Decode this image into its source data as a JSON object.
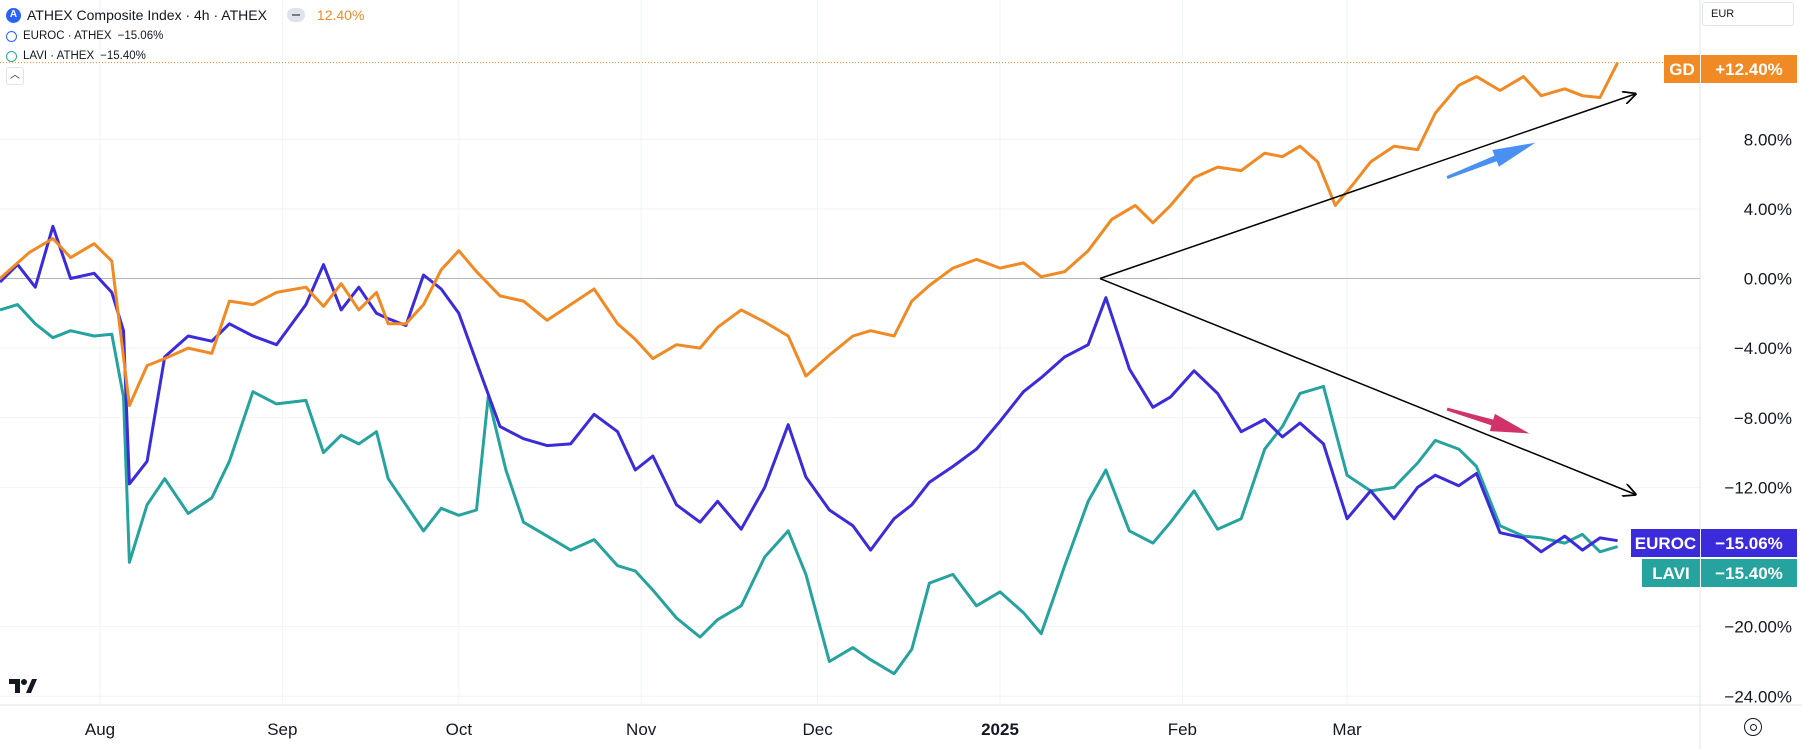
{
  "legend": {
    "main_symbol": "ATHEX Composite Index · 4h · ATHEX",
    "main_change": "12.40%",
    "rows": [
      {
        "text": "EUROC · ATHEX",
        "change": "−15.06%"
      },
      {
        "text": "LAVI · ATHEX",
        "change": "−15.40%"
      }
    ]
  },
  "currency": "EUR",
  "colors": {
    "GD": "#f08a24",
    "EUROC": "#3b2bdb",
    "LAVI": "#26a39f",
    "blue_arrow": "#4a90f0",
    "red_arrow": "#d0336a",
    "grid": "#f0f3fa"
  },
  "icons": {
    "logo": "tradingview-logo-icon",
    "settings": "gear-icon",
    "visibility": "eye-icon"
  },
  "chart_data": {
    "type": "line",
    "x_tick_labels": [
      "Aug",
      "Sep",
      "Oct",
      "Nov",
      "Dec",
      "2025",
      "Feb",
      "Mar"
    ],
    "y_tick_labels": [
      "8.00%",
      "4.00%",
      "0.00%",
      "−4.00%",
      "−8.00%",
      "−12.00%",
      "−20.00%",
      "−24.00%"
    ],
    "ylim": [
      -24.5,
      16
    ],
    "series": [
      {
        "name": "GD",
        "last_label": "+12.40%",
        "points": [
          [
            "2024-07-15",
            0
          ],
          [
            "2024-07-20",
            1.5
          ],
          [
            "2024-07-24",
            2.3
          ],
          [
            "2024-07-27",
            1.2
          ],
          [
            "2024-07-31",
            2.0
          ],
          [
            "2024-08-03",
            1.0
          ],
          [
            "2024-08-05",
            -4.5
          ],
          [
            "2024-08-06",
            -7.3
          ],
          [
            "2024-08-09",
            -5.0
          ],
          [
            "2024-08-12",
            -4.6
          ],
          [
            "2024-08-16",
            -4.0
          ],
          [
            "2024-08-20",
            -4.3
          ],
          [
            "2024-08-23",
            -1.3
          ],
          [
            "2024-08-27",
            -1.5
          ],
          [
            "2024-08-31",
            -0.8
          ],
          [
            "2024-09-05",
            -0.5
          ],
          [
            "2024-09-08",
            -1.6
          ],
          [
            "2024-09-11",
            -0.3
          ],
          [
            "2024-09-14",
            -1.8
          ],
          [
            "2024-09-17",
            -0.8
          ],
          [
            "2024-09-19",
            -2.6
          ],
          [
            "2024-09-22",
            -2.6
          ],
          [
            "2024-09-25",
            -1.5
          ],
          [
            "2024-09-28",
            0.5
          ],
          [
            "2024-10-01",
            1.6
          ],
          [
            "2024-10-04",
            0.4
          ],
          [
            "2024-10-08",
            -1.0
          ],
          [
            "2024-10-12",
            -1.3
          ],
          [
            "2024-10-16",
            -2.4
          ],
          [
            "2024-10-20",
            -1.5
          ],
          [
            "2024-10-24",
            -0.6
          ],
          [
            "2024-10-28",
            -2.6
          ],
          [
            "2024-10-31",
            -3.5
          ],
          [
            "2024-11-03",
            -4.6
          ],
          [
            "2024-11-07",
            -3.8
          ],
          [
            "2024-11-11",
            -4.0
          ],
          [
            "2024-11-14",
            -2.8
          ],
          [
            "2024-11-18",
            -1.8
          ],
          [
            "2024-11-22",
            -2.5
          ],
          [
            "2024-11-26",
            -3.3
          ],
          [
            "2024-11-29",
            -5.6
          ],
          [
            "2024-12-03",
            -4.4
          ],
          [
            "2024-12-07",
            -3.3
          ],
          [
            "2024-12-10",
            -3.0
          ],
          [
            "2024-12-14",
            -3.3
          ],
          [
            "2024-12-17",
            -1.3
          ],
          [
            "2024-12-20",
            -0.4
          ],
          [
            "2024-12-24",
            0.6
          ],
          [
            "2024-12-28",
            1.1
          ],
          [
            "2025-01-01",
            0.6
          ],
          [
            "2025-01-05",
            0.9
          ],
          [
            "2025-01-08",
            0.1
          ],
          [
            "2025-01-12",
            0.4
          ],
          [
            "2025-01-16",
            1.6
          ],
          [
            "2025-01-20",
            3.4
          ],
          [
            "2025-01-24",
            4.2
          ],
          [
            "2025-01-27",
            3.2
          ],
          [
            "2025-01-30",
            4.2
          ],
          [
            "2025-02-03",
            5.8
          ],
          [
            "2025-02-07",
            6.4
          ],
          [
            "2025-02-11",
            6.2
          ],
          [
            "2025-02-15",
            7.2
          ],
          [
            "2025-02-18",
            7.0
          ],
          [
            "2025-02-21",
            7.6
          ],
          [
            "2025-02-24",
            6.7
          ],
          [
            "2025-02-27",
            4.2
          ],
          [
            "2025-03-02",
            5.4
          ],
          [
            "2025-03-05",
            6.7
          ],
          [
            "2025-03-09",
            7.6
          ],
          [
            "2025-03-13",
            7.4
          ],
          [
            "2025-03-16",
            9.5
          ],
          [
            "2025-03-20",
            11.1
          ],
          [
            "2025-03-23",
            11.6
          ],
          [
            "2025-03-27",
            10.8
          ],
          [
            "2025-03-31",
            11.6
          ],
          [
            "2025-04-03",
            10.5
          ],
          [
            "2025-04-07",
            10.9
          ],
          [
            "2025-04-10",
            10.5
          ],
          [
            "2025-04-13",
            10.4
          ],
          [
            "2025-04-16",
            12.4
          ]
        ]
      },
      {
        "name": "EUROC",
        "last_label": "−15.06%",
        "points": [
          [
            "2024-07-15",
            -0.2
          ],
          [
            "2024-07-18",
            0.8
          ],
          [
            "2024-07-21",
            -0.5
          ],
          [
            "2024-07-24",
            3.0
          ],
          [
            "2024-07-27",
            0.0
          ],
          [
            "2024-07-31",
            0.3
          ],
          [
            "2024-08-03",
            -0.8
          ],
          [
            "2024-08-05",
            -3.0
          ],
          [
            "2024-08-06",
            -11.8
          ],
          [
            "2024-08-09",
            -10.5
          ],
          [
            "2024-08-12",
            -4.5
          ],
          [
            "2024-08-16",
            -3.3
          ],
          [
            "2024-08-20",
            -3.6
          ],
          [
            "2024-08-23",
            -2.6
          ],
          [
            "2024-08-27",
            -3.3
          ],
          [
            "2024-08-31",
            -3.8
          ],
          [
            "2024-09-05",
            -1.5
          ],
          [
            "2024-09-08",
            0.8
          ],
          [
            "2024-09-11",
            -1.8
          ],
          [
            "2024-09-14",
            -0.5
          ],
          [
            "2024-09-17",
            -2.0
          ],
          [
            "2024-09-19",
            -2.3
          ],
          [
            "2024-09-22",
            -2.7
          ],
          [
            "2024-09-25",
            0.2
          ],
          [
            "2024-09-28",
            -0.6
          ],
          [
            "2024-10-01",
            -2.0
          ],
          [
            "2024-10-04",
            -4.8
          ],
          [
            "2024-10-08",
            -8.5
          ],
          [
            "2024-10-12",
            -9.2
          ],
          [
            "2024-10-16",
            -9.6
          ],
          [
            "2024-10-20",
            -9.5
          ],
          [
            "2024-10-24",
            -7.8
          ],
          [
            "2024-10-28",
            -8.8
          ],
          [
            "2024-10-31",
            -11.0
          ],
          [
            "2024-11-03",
            -10.2
          ],
          [
            "2024-11-07",
            -13.0
          ],
          [
            "2024-11-11",
            -14.0
          ],
          [
            "2024-11-14",
            -12.8
          ],
          [
            "2024-11-18",
            -14.4
          ],
          [
            "2024-11-22",
            -12.0
          ],
          [
            "2024-11-26",
            -8.4
          ],
          [
            "2024-11-29",
            -11.4
          ],
          [
            "2024-12-03",
            -13.3
          ],
          [
            "2024-12-07",
            -14.2
          ],
          [
            "2024-12-10",
            -15.6
          ],
          [
            "2024-12-14",
            -13.8
          ],
          [
            "2024-12-17",
            -13.0
          ],
          [
            "2024-12-20",
            -11.7
          ],
          [
            "2024-12-24",
            -10.8
          ],
          [
            "2024-12-28",
            -9.8
          ],
          [
            "2025-01-01",
            -8.2
          ],
          [
            "2025-01-05",
            -6.5
          ],
          [
            "2025-01-08",
            -5.7
          ],
          [
            "2025-01-12",
            -4.5
          ],
          [
            "2025-01-16",
            -3.8
          ],
          [
            "2025-01-19",
            -1.1
          ],
          [
            "2025-01-23",
            -5.2
          ],
          [
            "2025-01-27",
            -7.4
          ],
          [
            "2025-01-30",
            -6.8
          ],
          [
            "2025-02-03",
            -5.3
          ],
          [
            "2025-02-07",
            -6.6
          ],
          [
            "2025-02-11",
            -8.8
          ],
          [
            "2025-02-15",
            -8.1
          ],
          [
            "2025-02-18",
            -9.1
          ],
          [
            "2025-02-21",
            -8.3
          ],
          [
            "2025-02-25",
            -9.5
          ],
          [
            "2025-03-01",
            -13.8
          ],
          [
            "2025-03-05",
            -12.2
          ],
          [
            "2025-03-09",
            -13.8
          ],
          [
            "2025-03-13",
            -12.0
          ],
          [
            "2025-03-16",
            -11.3
          ],
          [
            "2025-03-20",
            -11.9
          ],
          [
            "2025-03-23",
            -11.2
          ],
          [
            "2025-03-27",
            -14.6
          ],
          [
            "2025-03-31",
            -14.9
          ],
          [
            "2025-04-03",
            -15.7
          ],
          [
            "2025-04-07",
            -14.8
          ],
          [
            "2025-04-10",
            -15.6
          ],
          [
            "2025-04-13",
            -14.9
          ],
          [
            "2025-04-16",
            -15.06
          ]
        ]
      },
      {
        "name": "LAVI",
        "last_label": "−15.40%",
        "points": [
          [
            "2024-07-15",
            -1.8
          ],
          [
            "2024-07-18",
            -1.5
          ],
          [
            "2024-07-21",
            -2.6
          ],
          [
            "2024-07-24",
            -3.4
          ],
          [
            "2024-07-27",
            -3.0
          ],
          [
            "2024-07-31",
            -3.3
          ],
          [
            "2024-08-03",
            -3.2
          ],
          [
            "2024-08-05",
            -6.8
          ],
          [
            "2024-08-06",
            -16.3
          ],
          [
            "2024-08-09",
            -13.0
          ],
          [
            "2024-08-12",
            -11.5
          ],
          [
            "2024-08-16",
            -13.5
          ],
          [
            "2024-08-20",
            -12.6
          ],
          [
            "2024-08-23",
            -10.5
          ],
          [
            "2024-08-27",
            -6.5
          ],
          [
            "2024-08-31",
            -7.2
          ],
          [
            "2024-09-05",
            -7.0
          ],
          [
            "2024-09-08",
            -10.0
          ],
          [
            "2024-09-11",
            -9.0
          ],
          [
            "2024-09-14",
            -9.5
          ],
          [
            "2024-09-17",
            -8.8
          ],
          [
            "2024-09-19",
            -11.5
          ],
          [
            "2024-09-22",
            -13.0
          ],
          [
            "2024-09-25",
            -14.5
          ],
          [
            "2024-09-28",
            -13.2
          ],
          [
            "2024-10-01",
            -13.6
          ],
          [
            "2024-10-04",
            -13.3
          ],
          [
            "2024-10-06",
            -6.8
          ],
          [
            "2024-10-09",
            -11.0
          ],
          [
            "2024-10-12",
            -14.0
          ],
          [
            "2024-10-16",
            -14.8
          ],
          [
            "2024-10-20",
            -15.6
          ],
          [
            "2024-10-24",
            -15.0
          ],
          [
            "2024-10-28",
            -16.5
          ],
          [
            "2024-10-31",
            -16.8
          ],
          [
            "2024-11-03",
            -17.9
          ],
          [
            "2024-11-07",
            -19.5
          ],
          [
            "2024-11-11",
            -20.6
          ],
          [
            "2024-11-14",
            -19.6
          ],
          [
            "2024-11-18",
            -18.8
          ],
          [
            "2024-11-22",
            -16.0
          ],
          [
            "2024-11-26",
            -14.5
          ],
          [
            "2024-11-29",
            -17.0
          ],
          [
            "2024-12-03",
            -22.0
          ],
          [
            "2024-12-07",
            -21.2
          ],
          [
            "2024-12-10",
            -21.9
          ],
          [
            "2024-12-14",
            -22.7
          ],
          [
            "2024-12-17",
            -21.3
          ],
          [
            "2024-12-20",
            -17.5
          ],
          [
            "2024-12-24",
            -17.0
          ],
          [
            "2024-12-28",
            -18.8
          ],
          [
            "2025-01-01",
            -18.0
          ],
          [
            "2025-01-05",
            -19.2
          ],
          [
            "2025-01-08",
            -20.4
          ],
          [
            "2025-01-12",
            -16.5
          ],
          [
            "2025-01-16",
            -12.8
          ],
          [
            "2025-01-19",
            -11.0
          ],
          [
            "2025-01-23",
            -14.5
          ],
          [
            "2025-01-27",
            -15.2
          ],
          [
            "2025-01-30",
            -14.0
          ],
          [
            "2025-02-03",
            -12.2
          ],
          [
            "2025-02-07",
            -14.4
          ],
          [
            "2025-02-11",
            -13.8
          ],
          [
            "2025-02-15",
            -9.8
          ],
          [
            "2025-02-18",
            -8.5
          ],
          [
            "2025-02-21",
            -6.6
          ],
          [
            "2025-02-25",
            -6.2
          ],
          [
            "2025-03-01",
            -11.3
          ],
          [
            "2025-03-05",
            -12.2
          ],
          [
            "2025-03-09",
            -12.0
          ],
          [
            "2025-03-13",
            -10.6
          ],
          [
            "2025-03-16",
            -9.3
          ],
          [
            "2025-03-20",
            -9.8
          ],
          [
            "2025-03-23",
            -10.8
          ],
          [
            "2025-03-27",
            -14.2
          ],
          [
            "2025-03-31",
            -14.8
          ],
          [
            "2025-04-03",
            -14.9
          ],
          [
            "2025-04-07",
            -15.2
          ],
          [
            "2025-04-10",
            -14.7
          ],
          [
            "2025-04-13",
            -15.7
          ],
          [
            "2025-04-16",
            -15.4
          ]
        ]
      }
    ],
    "annotations": [
      {
        "type": "trend_arrow",
        "from": [
          "2025-01-18",
          0.0
        ],
        "to": [
          "2025-04-19",
          10.6
        ],
        "color": "#000000"
      },
      {
        "type": "trend_arrow",
        "from": [
          "2025-01-18",
          0.0
        ],
        "to": [
          "2025-04-19",
          -12.4
        ],
        "color": "#000000"
      },
      {
        "type": "fat_arrow",
        "from": [
          "2025-03-18",
          5.8
        ],
        "to": [
          "2025-04-02",
          7.8
        ],
        "color": "#4a90f0"
      },
      {
        "type": "fat_arrow",
        "from": [
          "2025-03-18",
          -7.5
        ],
        "to": [
          "2025-04-01",
          -8.9
        ],
        "color": "#d0336a"
      }
    ]
  }
}
